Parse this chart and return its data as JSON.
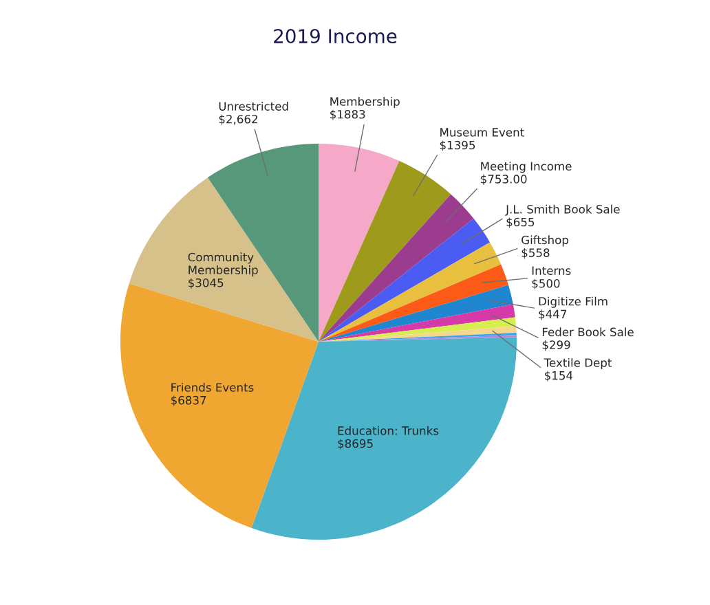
{
  "chart_data": {
    "type": "pie",
    "title": "2019 Income",
    "categories": [
      "Membership",
      "Museum Event",
      "Meeting Income",
      "J.L. Smith Book Sale",
      "Giftshop",
      "Interns",
      "Digitize Film",
      "Feder Book Sale",
      null,
      "Textile Dept",
      null,
      null,
      "Education: Trunks",
      "Friends Events",
      "Community\nMembership",
      "Unrestricted"
    ],
    "values": [
      1883,
      1395,
      753,
      655,
      558,
      500,
      447,
      299,
      200,
      154,
      50,
      50,
      8695,
      6837,
      3045,
      2662
    ],
    "value_labels": [
      "$1883",
      "$1395",
      "$753.00",
      "$655",
      "$558",
      "$500",
      "$447",
      "$299",
      null,
      "$154",
      null,
      null,
      "$8695",
      "$6837",
      "$3045",
      "$2,662"
    ],
    "colors": [
      "#f5a8c8",
      "#9e9a1c",
      "#9c3c8e",
      "#4a5cf2",
      "#e8bf3e",
      "#fb5a17",
      "#1f86cf",
      "#d63aa8",
      "#d6ef4e",
      "#f7d78e",
      "#2fa8e6",
      "#b38ae0",
      "#4bb3ca",
      "#efa732",
      "#d6c18b",
      "#57987a"
    ]
  }
}
